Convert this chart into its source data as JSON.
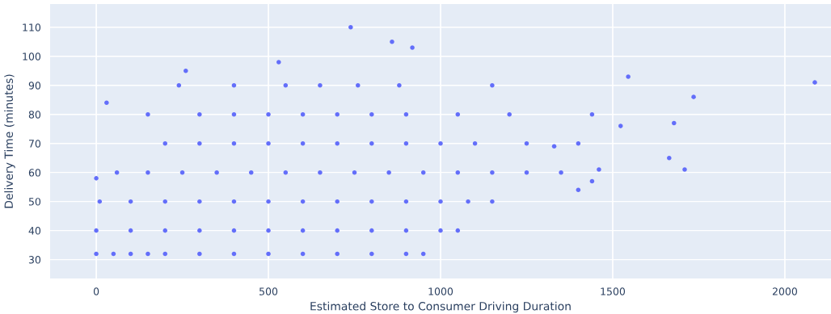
{
  "chart_data": {
    "type": "scatter",
    "xlabel": "Estimated Store to Consumer Driving Duration",
    "ylabel": "Delivery Time (minutes)",
    "x": [
      0,
      50,
      100,
      150,
      200,
      300,
      400,
      500,
      600,
      700,
      800,
      900,
      950,
      0,
      100,
      200,
      300,
      400,
      500,
      600,
      700,
      800,
      900,
      1000,
      1050,
      10,
      100,
      200,
      300,
      400,
      500,
      600,
      700,
      800,
      900,
      1000,
      1080,
      1150,
      60,
      150,
      250,
      350,
      450,
      550,
      650,
      750,
      850,
      950,
      1050,
      1150,
      1250,
      1350,
      200,
      300,
      400,
      500,
      600,
      700,
      800,
      900,
      1000,
      1100,
      1250,
      1400,
      150,
      300,
      400,
      500,
      600,
      700,
      800,
      900,
      1050,
      1200,
      1440,
      240,
      400,
      550,
      650,
      760,
      880,
      1150,
      0,
      30,
      1545,
      1735,
      1678,
      1664,
      1709,
      2087,
      1523,
      739,
      859,
      918,
      1440,
      1460,
      1400,
      1330,
      260,
      530
    ],
    "series": [
      {
        "color": "#636efa",
        "values": [
          32,
          32,
          32,
          32,
          32,
          32,
          32,
          32,
          32,
          32,
          32,
          32,
          32,
          40,
          40,
          40,
          40,
          40,
          40,
          40,
          40,
          40,
          40,
          40,
          40,
          50,
          50,
          50,
          50,
          50,
          50,
          50,
          50,
          50,
          50,
          50,
          50,
          50,
          60,
          60,
          60,
          60,
          60,
          60,
          60,
          60,
          60,
          60,
          60,
          60,
          60,
          60,
          70,
          70,
          70,
          70,
          70,
          70,
          70,
          70,
          70,
          70,
          70,
          70,
          80,
          80,
          80,
          80,
          80,
          80,
          80,
          80,
          80,
          80,
          80,
          90,
          90,
          90,
          90,
          90,
          90,
          90,
          58,
          84,
          93,
          86,
          77,
          65,
          61,
          91,
          76,
          110,
          105,
          103,
          57,
          61,
          54,
          69,
          95,
          98
        ]
      }
    ],
    "xlim": [
      -134,
      2134
    ],
    "ylim": [
      23.5,
      118
    ],
    "xticks": [
      0,
      500,
      1000,
      1500,
      2000
    ],
    "yticks": [
      30,
      40,
      50,
      60,
      70,
      80,
      90,
      100,
      110
    ],
    "grid": true,
    "marker": "circle"
  }
}
